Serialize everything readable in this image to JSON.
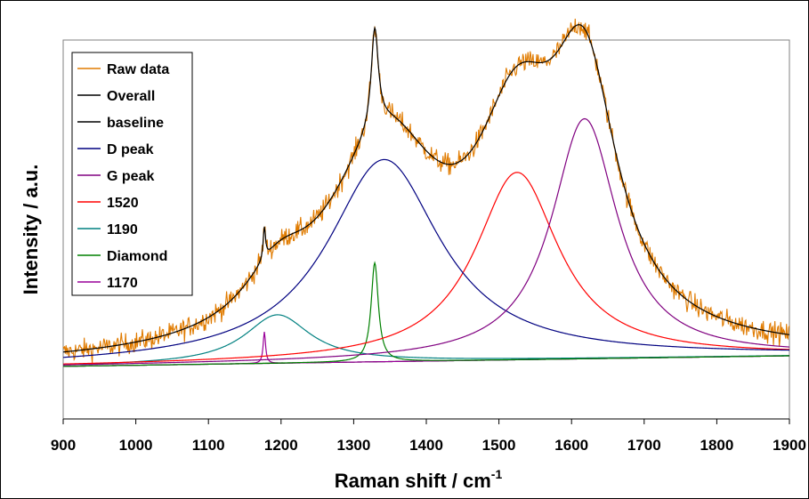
{
  "chart_data": {
    "type": "line",
    "title": "",
    "xlabel": "Raman shift / cm",
    "xlabel_superscript": "-1",
    "ylabel": "Intensity / a.u.",
    "xlim": [
      900,
      1900
    ],
    "ylim": [
      -0.12,
      0.78
    ],
    "x_ticks": [
      "900",
      "1000",
      "1100",
      "1200",
      "1300",
      "1400",
      "1500",
      "1600",
      "1700",
      "1800",
      "1900"
    ],
    "grid": false,
    "legend_position": "top-left",
    "legend": [
      "Raw data",
      "Overall",
      "baseline",
      "D peak",
      "G peak",
      "1520",
      "1190",
      "Diamond",
      "1170"
    ],
    "series": [
      {
        "name": "Raw data",
        "color": "#E07B00",
        "noisy_copy_of": "Overall"
      },
      {
        "name": "Overall",
        "color": "#000000",
        "sum_of_components": true
      },
      {
        "name": "baseline",
        "color": "#000000",
        "x": [
          900,
          1900
        ],
        "y": [
          0.005,
          0.03
        ]
      },
      {
        "name": "D peak",
        "color": "#000080",
        "center": 1342,
        "height": 0.48,
        "hwhm": 95
      },
      {
        "name": "G peak",
        "color": "#800080",
        "center": 1618,
        "height": 0.57,
        "hwhm": 55
      },
      {
        "name": "1520",
        "color": "#FF0000",
        "center": 1525,
        "height": 0.445,
        "hwhm": 70
      },
      {
        "name": "1190",
        "color": "#008080",
        "center": 1195,
        "height": 0.115,
        "hwhm": 55
      },
      {
        "name": "Diamond",
        "color": "#008000",
        "center": 1329,
        "height": 0.235,
        "hwhm": 6
      },
      {
        "name": "1170",
        "color": "#990099",
        "center": 1177,
        "height": 0.075,
        "hwhm": 2
      }
    ]
  }
}
